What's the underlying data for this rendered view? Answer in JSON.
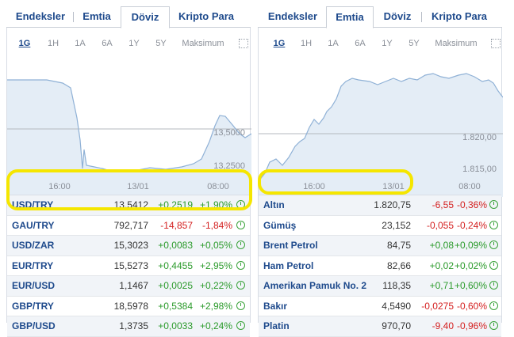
{
  "left_widget": {
    "tabs": [
      {
        "label": "Endeksler",
        "active": false
      },
      {
        "label": "Emtia",
        "active": false
      },
      {
        "label": "Döviz",
        "active": true
      },
      {
        "label": "Kripto Para",
        "active": false
      }
    ],
    "ranges": [
      "1G",
      "1H",
      "1A",
      "6A",
      "1Y",
      "5Y",
      "Maksimum"
    ],
    "active_range": "1G",
    "chart": {
      "y_labels": [
        "13,5000",
        "13,2500"
      ],
      "x_labels": [
        "16:00",
        "13/01",
        "08:00"
      ],
      "line_color": "#8fb1d6",
      "fill_color": "#e4edf6"
    },
    "rows": [
      {
        "name": "USD/TRY",
        "value": "13,5412",
        "change": "+0,2519",
        "percent": "+1,90%",
        "direction": "up"
      },
      {
        "name": "GAU/TRY",
        "value": "792,717",
        "change": "-14,857",
        "percent": "-1,84%",
        "direction": "down"
      },
      {
        "name": "USD/ZAR",
        "value": "15,3023",
        "change": "+0,0083",
        "percent": "+0,05%",
        "direction": "up"
      },
      {
        "name": "EUR/TRY",
        "value": "15,5273",
        "change": "+0,4455",
        "percent": "+2,95%",
        "direction": "up"
      },
      {
        "name": "EUR/USD",
        "value": "1,1467",
        "change": "+0,0025",
        "percent": "+0,22%",
        "direction": "up"
      },
      {
        "name": "GBP/TRY",
        "value": "18,5978",
        "change": "+0,5384",
        "percent": "+2,98%",
        "direction": "up"
      },
      {
        "name": "GBP/USD",
        "value": "1,3735",
        "change": "+0,0033",
        "percent": "+0,24%",
        "direction": "up"
      }
    ]
  },
  "right_widget": {
    "tabs": [
      {
        "label": "Endeksler",
        "active": false
      },
      {
        "label": "Emtia",
        "active": true
      },
      {
        "label": "Döviz",
        "active": false
      },
      {
        "label": "Kripto Para",
        "active": false
      }
    ],
    "ranges": [
      "1G",
      "1H",
      "1A",
      "6A",
      "1Y",
      "5Y",
      "Maksimum"
    ],
    "active_range": "1G",
    "chart": {
      "y_labels": [
        "1.820,00",
        "1.815,00"
      ],
      "x_labels": [
        "16:00",
        "13/01",
        "08:00"
      ],
      "line_color": "#8fb1d6",
      "fill_color": "#e4edf6"
    },
    "rows": [
      {
        "name": "Altın",
        "value": "1.820,75",
        "change": "-6,55",
        "percent": "-0,36%",
        "direction": "down"
      },
      {
        "name": "Gümüş",
        "value": "23,152",
        "change": "-0,055",
        "percent": "-0,24%",
        "direction": "down"
      },
      {
        "name": "Brent Petrol",
        "value": "84,75",
        "change": "+0,08",
        "percent": "+0,09%",
        "direction": "up"
      },
      {
        "name": "Ham Petrol",
        "value": "82,66",
        "change": "+0,02",
        "percent": "+0,02%",
        "direction": "up"
      },
      {
        "name": "Amerikan Pamuk No. 2",
        "value": "118,35",
        "change": "+0,71",
        "percent": "+0,60%",
        "direction": "up"
      },
      {
        "name": "Bakır",
        "value": "4,5490",
        "change": "-0,0275",
        "percent": "-0,60%",
        "direction": "down"
      },
      {
        "name": "Platin",
        "value": "970,70",
        "change": "-9,40",
        "percent": "-0,96%",
        "direction": "down"
      }
    ]
  },
  "highlight_color": "#f5e600"
}
